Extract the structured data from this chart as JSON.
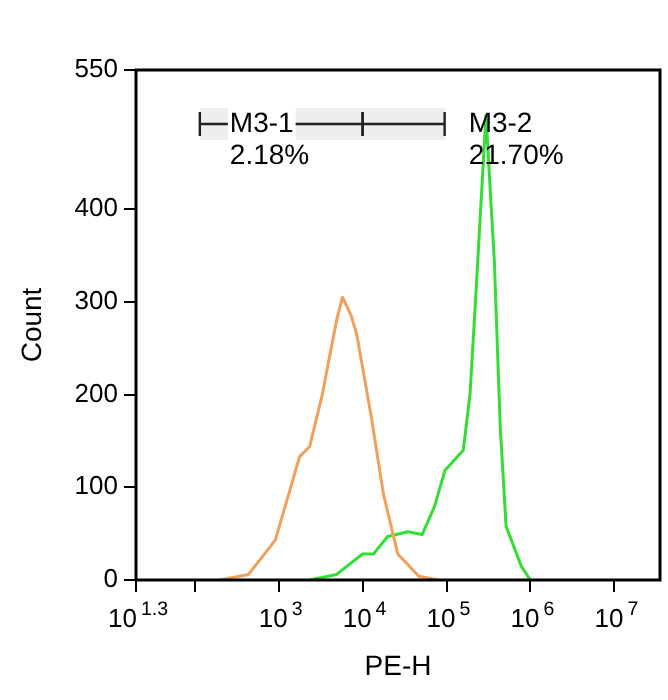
{
  "chart_data": {
    "type": "line",
    "xlabel": "PE-H",
    "ylabel": "Count",
    "log": "x",
    "xlim": [
      19.95,
      35000000
    ],
    "xticks": [
      {
        "value": 19.95,
        "label": "10$^{1.3}$"
      },
      {
        "value": 100,
        "label": null
      },
      {
        "value": 1000,
        "label": "10$^{3}$"
      },
      {
        "value": 10000,
        "label": "10$^{4}$"
      },
      {
        "value": 100000,
        "label": "10$^{5}$"
      },
      {
        "value": 1000000,
        "label": "10$^{6}$"
      },
      {
        "value": 10000000,
        "label": "10$^{7}$"
      }
    ],
    "ylim": [
      0,
      550
    ],
    "yticks": [
      0,
      100,
      200,
      300,
      400,
      550
    ],
    "grid": false,
    "legend": false,
    "marker": "none",
    "line_style": "solid",
    "series": [
      {
        "color": "#f0a05a",
        "x": [
          200,
          437,
          912,
          1778,
          2344,
          3311,
          4898,
          5754,
          7244,
          8511,
          12589,
          17783,
          26303,
          46774,
          79433
        ],
        "values": [
          0,
          6,
          43,
          133,
          144,
          200,
          280,
          305,
          286,
          265,
          178,
          92,
          28,
          4,
          0
        ]
      },
      {
        "color": "#33dd33",
        "x": [
          2344,
          4898,
          10000,
          13490,
          19953,
          34674,
          51286,
          72444,
          95499,
          158489,
          190546,
          223872,
          295121,
          371535,
          436516,
          512861,
          776247,
          1000000
        ],
        "values": [
          0,
          6,
          28,
          28,
          47,
          52,
          49,
          80,
          118,
          140,
          200,
          308,
          501,
          344,
          166,
          58,
          15,
          0
        ]
      }
    ],
    "bands": [
      {
        "axis": "x",
        "from": 115,
        "to": 10000,
        "color": "#222222",
        "label": "M3-1\n2.18%"
      },
      {
        "axis": "x",
        "from": 10000,
        "to": 95000,
        "color": "#222222",
        "label": "M3-2\n21.70%"
      }
    ]
  }
}
